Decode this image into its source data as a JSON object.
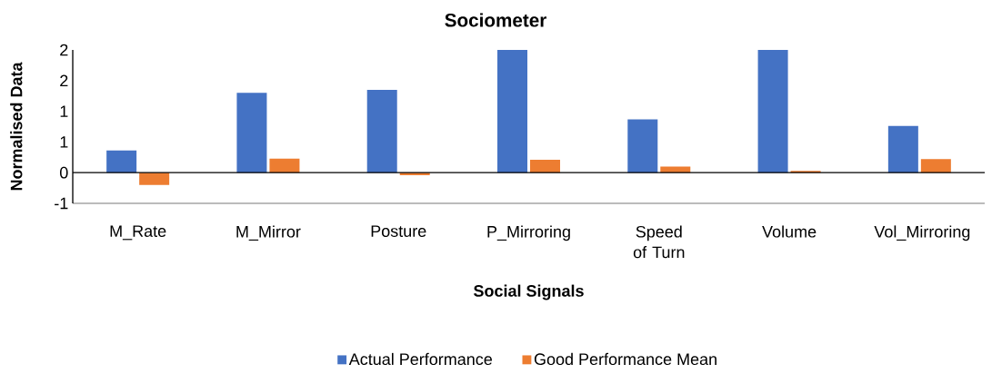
{
  "chart_data": {
    "type": "bar",
    "title": "Sociometer",
    "xlabel": "Social Signals",
    "ylabel": "Normalised Data",
    "categories": [
      "M_Rate",
      "M_Mirror",
      "Posture",
      "P_Mirroring",
      "Speed of Turn",
      "Volume",
      "Vol_Mirroring"
    ],
    "series": [
      {
        "name": "Actual Performance",
        "color": "#4472c4",
        "values": [
          0.36,
          1.3,
          1.35,
          2,
          0.87,
          2,
          0.76
        ]
      },
      {
        "name": "Good Performance Mean",
        "color": "#ed7d31",
        "values": [
          -0.2,
          0.23,
          -0.04,
          0.21,
          0.1,
          0.03,
          0.22
        ]
      }
    ],
    "ylim": [
      -0.5,
      2
    ],
    "yticks": [
      {
        "value": -0.5,
        "label": "-1"
      },
      {
        "value": 0,
        "label": "0"
      },
      {
        "value": 0.5,
        "label": "1"
      },
      {
        "value": 1,
        "label": "1"
      },
      {
        "value": 1.5,
        "label": "2"
      },
      {
        "value": 2,
        "label": "2"
      }
    ],
    "legend": "bottom"
  }
}
